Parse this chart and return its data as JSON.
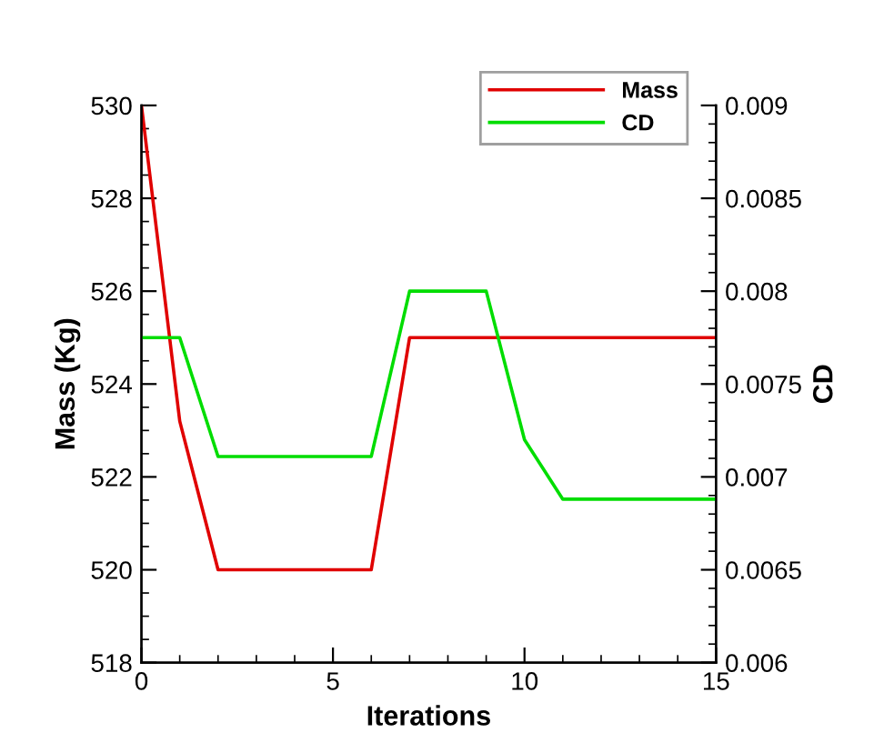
{
  "chart_data": {
    "type": "line",
    "xlabel": "Iterations",
    "ylabel": "Mass (Kg)",
    "y2label": "CD",
    "x": [
      0,
      1,
      2,
      3,
      4,
      5,
      6,
      7,
      8,
      9,
      10,
      11,
      12,
      13,
      14,
      15
    ],
    "series": [
      {
        "name": "Mass",
        "color": "#e00000",
        "values": [
          530,
          523.2,
          520,
          520,
          520,
          520,
          520,
          525,
          525,
          525,
          525,
          525,
          525,
          525,
          525,
          525
        ]
      },
      {
        "name": "CD",
        "color": "#00dd00",
        "axis": "y2",
        "values": [
          0.00775,
          0.00775,
          0.00711,
          0.00711,
          0.00711,
          0.00711,
          0.00711,
          0.008,
          0.008,
          0.008,
          0.0072,
          0.00688,
          0.00688,
          0.00688,
          0.00688,
          0.00688
        ]
      }
    ],
    "xlim": [
      0,
      15
    ],
    "xticks": [
      0,
      5,
      10,
      15
    ],
    "ylim": [
      518,
      530
    ],
    "yticks": [
      518,
      520,
      522,
      524,
      526,
      528,
      530
    ],
    "y2lim": [
      0.006,
      0.009
    ],
    "y2ticks": [
      0.006,
      0.0065,
      0.007,
      0.0075,
      0.008,
      0.0085,
      0.009
    ],
    "grid": false,
    "legend": "top right",
    "marker": "none",
    "line_style": "solid"
  }
}
